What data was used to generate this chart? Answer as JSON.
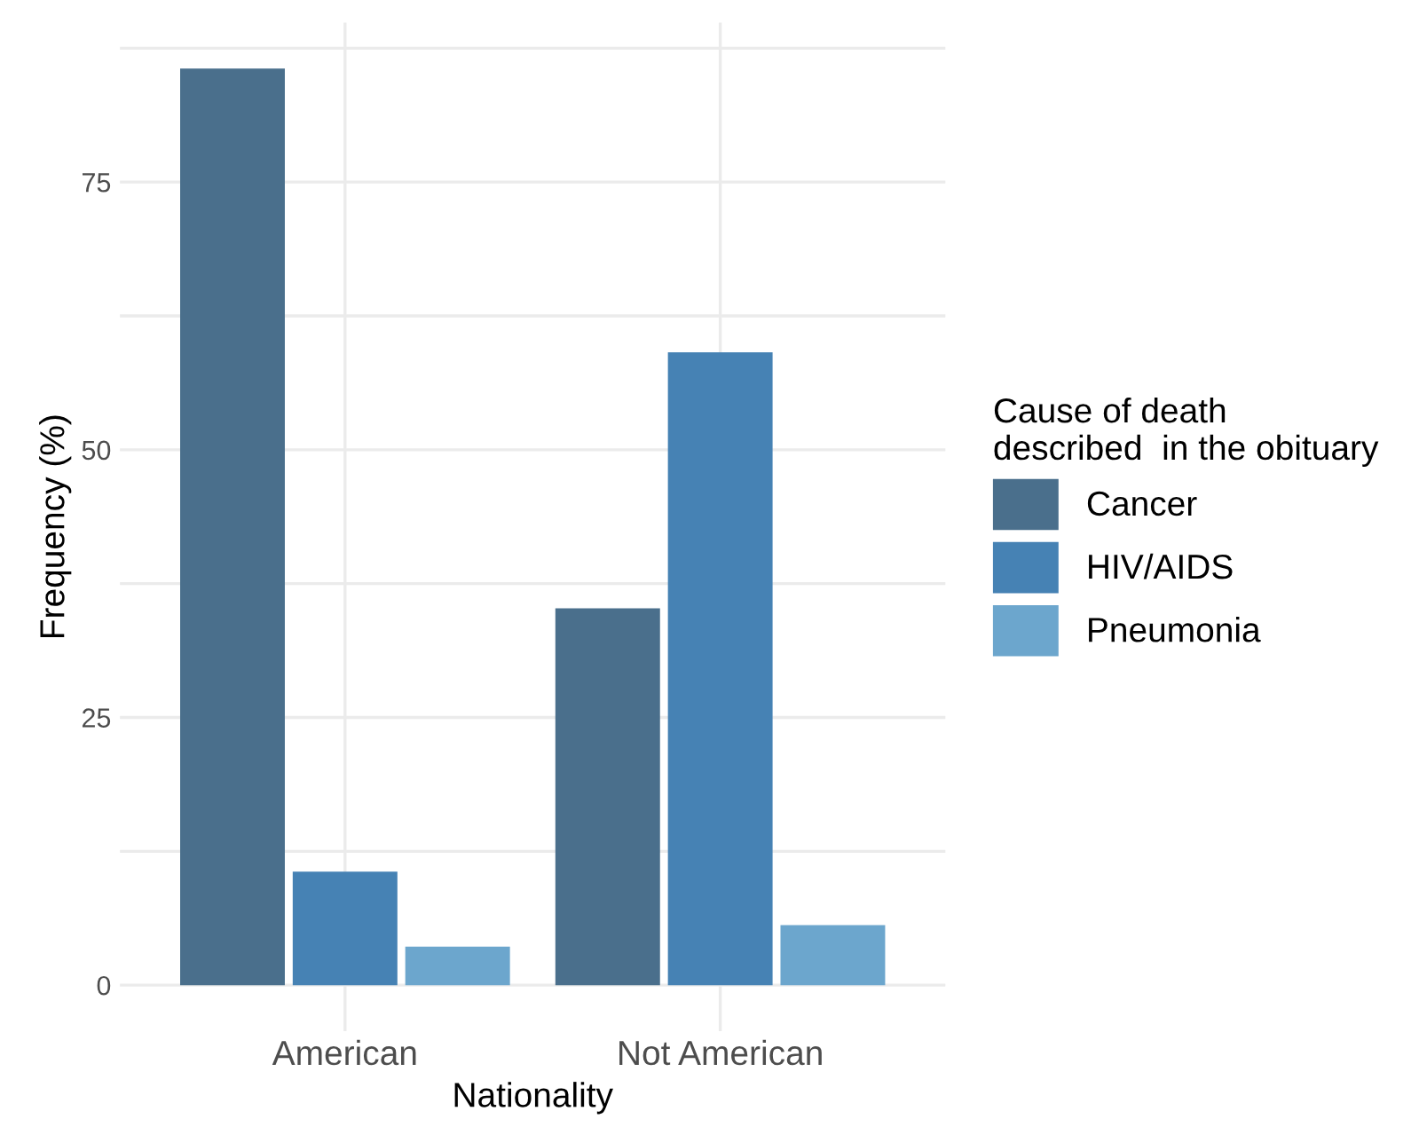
{
  "chart_data": {
    "type": "bar",
    "xlabel": "Nationality",
    "ylabel": "Frequency (%)",
    "legend_title": "Cause of death\ndescribed  in the obituary",
    "categories": [
      "American",
      "Not American"
    ],
    "series": [
      {
        "name": "Cancer",
        "color": "#4a6f8c",
        "values": [
          85.6,
          35.2
        ]
      },
      {
        "name": "HIV/AIDS",
        "color": "#4682b4",
        "values": [
          10.6,
          59.1
        ]
      },
      {
        "name": "Pneumonia",
        "color": "#6ca6cd",
        "values": [
          3.6,
          5.6
        ]
      }
    ],
    "ylim": [
      -4.3,
      89.9
    ],
    "yticks": [
      0,
      {
        "value": 12.5,
        "label": null
      },
      25,
      {
        "value": 37.5,
        "label": null
      },
      50,
      {
        "value": 62.5,
        "label": null
      },
      75,
      {
        "value": 87.5,
        "label": null
      }
    ],
    "grid": true,
    "legend": "right"
  }
}
